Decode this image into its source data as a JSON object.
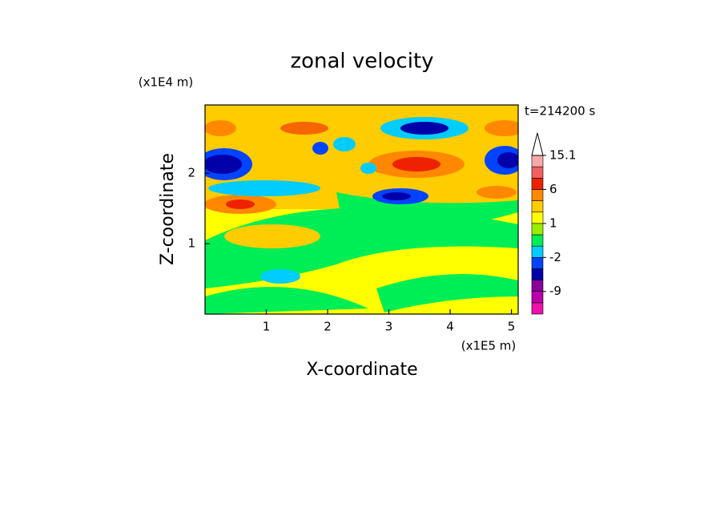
{
  "chart_data": {
    "type": "contour",
    "title": "zonal velocity",
    "x_label": "X-coordinate",
    "y_label": "Z-coordinate",
    "x_unit": "(x1E5 m)",
    "y_unit": "(x1E4 m)",
    "time_label": "t=214200 s",
    "xlim": [
      0,
      5.11
    ],
    "xticks": [
      1,
      2,
      3,
      4,
      5
    ],
    "ylim": [
      0,
      2.97
    ],
    "yticks": [
      1,
      2
    ],
    "colorbar": {
      "levels": [
        -15,
        -12,
        -9,
        -6,
        -3,
        -2,
        -1,
        0,
        1,
        2,
        4,
        6,
        9,
        12,
        15.1
      ],
      "colors": [
        "#ee11aa",
        "#bb00aa",
        "#880099",
        "#0000aa",
        "#0044ff",
        "#00ccff",
        "#00ee55",
        "#99ee00",
        "#ffff00",
        "#ffcc00",
        "#ff8800",
        "#ee2200",
        "#f06060",
        "#f8a8a8"
      ],
      "ticks": [
        -9,
        -2,
        1,
        6,
        15.1
      ]
    }
  }
}
